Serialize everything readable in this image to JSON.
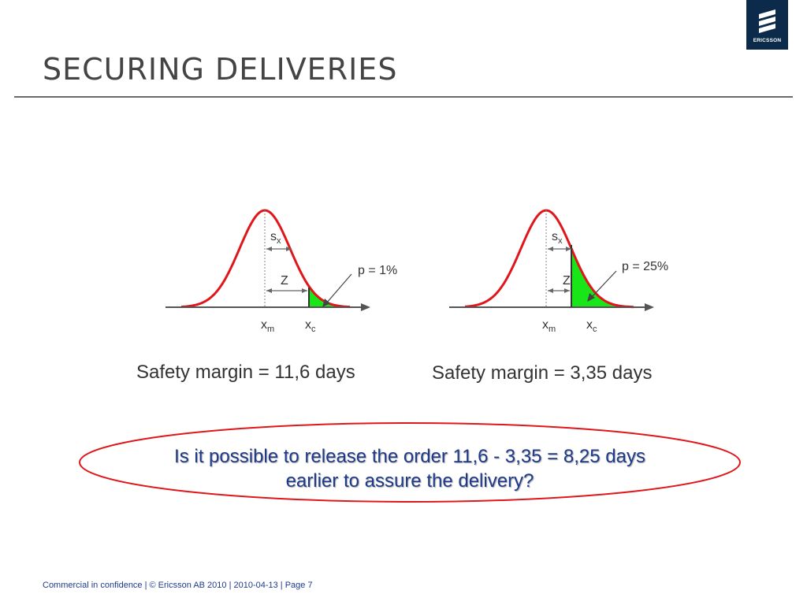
{
  "slide": {
    "title": "SECURING DELIVERIES",
    "logo_text": "ERICSSON",
    "footer": "Commercial in confidence  |  © Ericsson AB 2010  |  2010-04-13  |  Page 7"
  },
  "colors": {
    "title": "#444444",
    "curve": "#e0161b",
    "tail_fill": "#19e619",
    "axis": "#555555",
    "question_text": "#1f3a8a",
    "logo_bg": "#0c2a4a"
  },
  "diagrams": {
    "left": {
      "sigma_label": "s",
      "sigma_sub": "x",
      "z_label": "Z",
      "p_label": "p = 1%",
      "mean_label": "x",
      "mean_sub": "m",
      "critical_label": "x",
      "critical_sub": "c",
      "p_value": 0.01
    },
    "right": {
      "sigma_label": "s",
      "sigma_sub": "x",
      "z_label": "Z",
      "p_label": "p = 25%",
      "mean_label": "x",
      "mean_sub": "m",
      "critical_label": "x",
      "critical_sub": "c",
      "p_value": 0.25
    }
  },
  "margins": {
    "left": "Safety margin = 11,6 days",
    "right": "Safety margin = 3,35 days"
  },
  "question": {
    "line1": "Is it possible to release the order 11,6 - 3,35 = 8,25 days",
    "line2": "earlier to assure the delivery?"
  }
}
